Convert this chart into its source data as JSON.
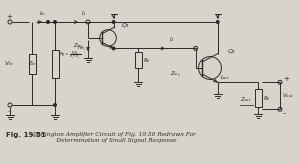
{
  "bg_color": "#d8d4cc",
  "line_color": "#2a2a2a",
  "caption_fig": "Fig. 19.51",
  "caption_text": "Darlington Amplifier Circuit of Fig. 19.50 Redrawn For\n             Determination of Small Signal Response",
  "fig_width": 3.0,
  "fig_height": 1.64,
  "dpi": 100
}
